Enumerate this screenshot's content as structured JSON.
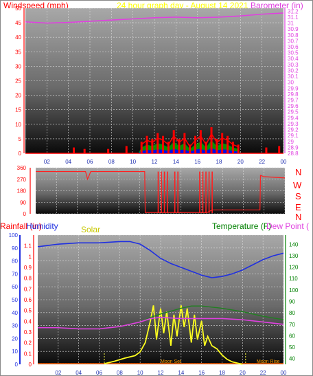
{
  "header": {
    "windspeed_label": "Windspeed (mph)",
    "title": "24 hour graph day - August 14 2021",
    "barometer_label": "Barometer (in)"
  },
  "compass": [
    "N",
    "W",
    "S",
    "E",
    "N"
  ],
  "bottom_labels": {
    "rainfall": "Rainfall (in)",
    "humidity": "Humidity",
    "solar": "Solar",
    "temperature": "Temperature (F)",
    "dewpoint": "Dew Point ("
  },
  "moon": {
    "set": "Moon Set",
    "rise": "Moon Rise"
  },
  "colors": {
    "wind": "#ff0000",
    "gust_fill": "#00a000",
    "avg_fill": "#0000ff",
    "barometer": "#e040e0",
    "direction": "#ff2020",
    "humidity": "#2030e0",
    "solar": "#ffff20",
    "temperature": "#208020",
    "dewpoint": "#e040e0",
    "rain_axis": "#ff0000",
    "temp_axis": "#008000",
    "moon_text": "#ffa000"
  },
  "chart_data": [
    {
      "type": "line",
      "name": "wind-barometer",
      "x_ticks": [
        "02",
        "04",
        "06",
        "08",
        "10",
        "12",
        "14",
        "16",
        "18",
        "20",
        "22",
        "00"
      ],
      "y_left_ticks": [
        "0",
        "5",
        "10",
        "15",
        "20",
        "25",
        "30",
        "35",
        "40",
        "45",
        "50"
      ],
      "y_left_range": [
        0,
        50
      ],
      "y_right_ticks": [
        "28.8",
        "28.9",
        "29",
        "29.1",
        "29.2",
        "29.3",
        "29.4",
        "29.5",
        "29.6",
        "29.7",
        "29.8",
        "29.9",
        "30",
        "30.1",
        "30.2",
        "30.3",
        "30.4",
        "30.5",
        "30.6",
        "30.7",
        "30.8",
        "30.9",
        "31",
        "31.1",
        "31.2"
      ],
      "y_right_range": [
        28.8,
        31.25
      ],
      "x_range": [
        0,
        24
      ],
      "barometer": {
        "x": [
          0,
          2,
          4,
          6,
          8,
          10,
          12,
          14,
          16,
          18,
          20,
          22,
          24
        ],
        "y": [
          31.02,
          31.0,
          31.01,
          31.03,
          31.05,
          31.07,
          31.09,
          31.1,
          31.09,
          31.1,
          31.12,
          31.15,
          31.17
        ]
      },
      "windspeed_peaks": {
        "x": [
          4.5,
          5.5,
          7.7,
          9.4,
          10.8,
          11.3,
          11.8,
          12.3,
          12.8,
          13.3,
          13.8,
          14.3,
          14.8,
          15.3,
          15.8,
          16.3,
          16.8,
          17.3,
          17.8,
          18.3,
          18.8,
          19.3,
          19.8,
          22.4,
          23.6
        ],
        "y": [
          2,
          1.5,
          1.5,
          2.5,
          4,
          6,
          5,
          7,
          6,
          4,
          8,
          5,
          7,
          3,
          6,
          8,
          4,
          9,
          5,
          7,
          6,
          4,
          3,
          2,
          2.5
        ]
      }
    },
    {
      "type": "line",
      "name": "wind-direction",
      "x_ticks": [
        "02",
        "04",
        "06",
        "08",
        "10",
        "12",
        "14",
        "16",
        "18",
        "20",
        "22",
        "00"
      ],
      "y_ticks": [
        "0",
        "90",
        "180",
        "270",
        "360"
      ],
      "y_range": [
        0,
        360
      ],
      "x_range": [
        0,
        24
      ],
      "direction": {
        "x": [
          0,
          4.8,
          5.0,
          5.3,
          10.5,
          10.55,
          11,
          11.5,
          12,
          13,
          14,
          15,
          16.5,
          17,
          18,
          19,
          20.5,
          21.6,
          21.65,
          22,
          24
        ],
        "y": [
          330,
          330,
          270,
          330,
          330,
          10,
          10,
          10,
          10,
          10,
          10,
          10,
          10,
          30,
          30,
          30,
          30,
          30,
          300,
          290,
          280
        ]
      }
    },
    {
      "type": "line",
      "name": "rain-humidity-solar-temperature",
      "x_ticks": [
        "02",
        "04",
        "06",
        "08",
        "10",
        "12",
        "14",
        "16",
        "18",
        "20",
        "22",
        "00"
      ],
      "y_rain_ticks": [
        "0",
        "0.1",
        "0.2",
        "0.3",
        "0.4",
        "0.5",
        "0.6",
        "0.7",
        "0.8",
        "0.9",
        "1",
        "1.1"
      ],
      "y_rain_range": [
        0,
        1.2
      ],
      "y_humidity_ticks": [
        "0",
        "10",
        "20",
        "30",
        "40",
        "50",
        "60",
        "70",
        "80",
        "90",
        "100"
      ],
      "y_humidity_range": [
        0,
        100
      ],
      "y_temp_ticks": [
        "40",
        "50",
        "60",
        "70",
        "80",
        "90",
        "100",
        "110",
        "120",
        "130",
        "140"
      ],
      "y_temp_range": [
        35,
        148
      ],
      "x_range": [
        0,
        24
      ],
      "humidity": {
        "x": [
          0,
          2,
          4,
          6,
          8,
          9,
          10,
          11,
          12,
          13,
          14,
          15,
          16,
          17,
          18,
          19,
          20,
          21,
          22,
          23,
          24
        ],
        "y": [
          91,
          93,
          94,
          94,
          95,
          95,
          93,
          88,
          82,
          78,
          75,
          72,
          69,
          67,
          68,
          70,
          73,
          77,
          81,
          84,
          86
        ]
      },
      "temperature": {
        "x": [
          0,
          2,
          4,
          6,
          8,
          10,
          11,
          12,
          14,
          15,
          16,
          18,
          20,
          22,
          24
        ],
        "y": [
          67,
          67,
          66,
          66,
          68,
          72,
          76,
          79,
          84,
          86,
          86,
          84,
          81,
          77,
          74
        ]
      },
      "dewpoint": {
        "x": [
          0,
          2,
          4,
          6,
          8,
          10,
          11,
          12,
          14,
          16,
          18,
          20,
          22,
          24
        ],
        "y": [
          67,
          67,
          66,
          66,
          68,
          72,
          75,
          76,
          75,
          75,
          75,
          74,
          72,
          70
        ]
      },
      "solar_relative": {
        "x": [
          6.5,
          7.5,
          8.5,
          9.5,
          10,
          10.5,
          11,
          11.3,
          11.6,
          12,
          12.3,
          12.6,
          13,
          13.3,
          13.6,
          14,
          14.3,
          14.6,
          15,
          15.3,
          15.6,
          16,
          16.3,
          16.6,
          17,
          17.5,
          18,
          18.5,
          19,
          19.5,
          20
        ],
        "y": [
          0.01,
          0.05,
          0.1,
          0.14,
          0.2,
          0.35,
          0.7,
          0.95,
          0.4,
          0.9,
          0.5,
          0.85,
          0.3,
          0.8,
          0.45,
          0.95,
          0.6,
          0.9,
          0.35,
          0.8,
          0.4,
          0.7,
          0.3,
          0.45,
          0.3,
          0.25,
          0.15,
          0.08,
          0.04,
          0.02,
          0.0
        ]
      }
    }
  ]
}
